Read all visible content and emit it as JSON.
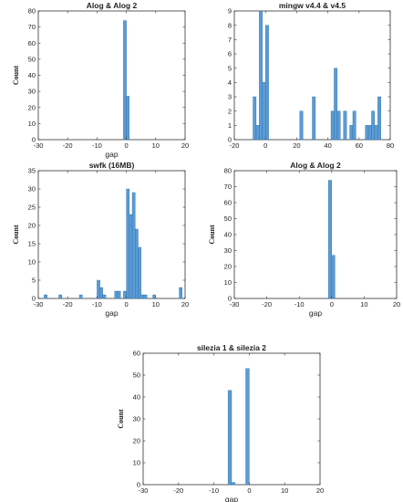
{
  "chart_data": [
    {
      "type": "bar",
      "title": "Alog & Alog 2",
      "xlabel": "gap",
      "ylabel": "Count",
      "xlim": [
        -30,
        20
      ],
      "ylim": [
        0,
        80
      ],
      "xticks": [
        -30,
        -20,
        -10,
        0,
        10,
        20
      ],
      "yticks": [
        0,
        10,
        20,
        30,
        40,
        50,
        60,
        70,
        80
      ],
      "bins": [
        {
          "x0": -1,
          "x1": 0,
          "count": 74
        },
        {
          "x0": 0,
          "x1": 1,
          "count": 27
        }
      ]
    },
    {
      "type": "bar",
      "title": "mingw v4.4 & v4.5",
      "xlabel": "",
      "ylabel": "",
      "xlim": [
        -20,
        80
      ],
      "ylim": [
        0,
        9
      ],
      "xticks": [
        -20,
        0,
        20,
        40,
        60,
        80
      ],
      "yticks": [
        0,
        1,
        2,
        3,
        4,
        5,
        6,
        7,
        8,
        9
      ],
      "bins": [
        {
          "x0": -8,
          "x1": -6,
          "count": 3
        },
        {
          "x0": -6,
          "x1": -4,
          "count": 1
        },
        {
          "x0": -4,
          "x1": -2,
          "count": 9
        },
        {
          "x0": -2,
          "x1": 0,
          "count": 4
        },
        {
          "x0": 0,
          "x1": 2,
          "count": 8
        },
        {
          "x0": 22,
          "x1": 24,
          "count": 2
        },
        {
          "x0": 30,
          "x1": 32,
          "count": 3
        },
        {
          "x0": 42,
          "x1": 44,
          "count": 2
        },
        {
          "x0": 44,
          "x1": 46,
          "count": 5
        },
        {
          "x0": 46,
          "x1": 48,
          "count": 2
        },
        {
          "x0": 50,
          "x1": 52,
          "count": 2
        },
        {
          "x0": 54,
          "x1": 56,
          "count": 1
        },
        {
          "x0": 56,
          "x1": 58,
          "count": 2
        },
        {
          "x0": 64,
          "x1": 66,
          "count": 1
        },
        {
          "x0": 66,
          "x1": 68,
          "count": 1
        },
        {
          "x0": 68,
          "x1": 70,
          "count": 2
        },
        {
          "x0": 70,
          "x1": 72,
          "count": 1
        },
        {
          "x0": 72,
          "x1": 74,
          "count": 3
        }
      ]
    },
    {
      "type": "bar",
      "title": "swfk (16MB)",
      "xlabel": "gap",
      "ylabel": "Count",
      "xlim": [
        -30,
        20
      ],
      "ylim": [
        0,
        35
      ],
      "xticks": [
        -30,
        -20,
        -10,
        0,
        10,
        20
      ],
      "yticks": [
        0,
        5,
        10,
        15,
        20,
        25,
        30,
        35
      ],
      "bins": [
        {
          "x0": -28,
          "x1": -27,
          "count": 1
        },
        {
          "x0": -23,
          "x1": -22,
          "count": 1
        },
        {
          "x0": -16,
          "x1": -15,
          "count": 1
        },
        {
          "x0": -10,
          "x1": -9,
          "count": 5
        },
        {
          "x0": -9,
          "x1": -8,
          "count": 3
        },
        {
          "x0": -8,
          "x1": -7,
          "count": 1
        },
        {
          "x0": -4,
          "x1": -3,
          "count": 2
        },
        {
          "x0": -3,
          "x1": -2,
          "count": 2
        },
        {
          "x0": -1,
          "x1": 0,
          "count": 2
        },
        {
          "x0": 0,
          "x1": 1,
          "count": 30
        },
        {
          "x0": 1,
          "x1": 2,
          "count": 23
        },
        {
          "x0": 2,
          "x1": 3,
          "count": 29
        },
        {
          "x0": 3,
          "x1": 4,
          "count": 19
        },
        {
          "x0": 4,
          "x1": 5,
          "count": 14
        },
        {
          "x0": 5,
          "x1": 6,
          "count": 1
        },
        {
          "x0": 6,
          "x1": 7,
          "count": 1
        },
        {
          "x0": 9,
          "x1": 10,
          "count": 1
        },
        {
          "x0": 18,
          "x1": 19,
          "count": 3
        }
      ]
    },
    {
      "type": "bar",
      "title": "Alog & Alog 2",
      "xlabel": "gap",
      "ylabel": "Count",
      "xlim": [
        -30,
        20
      ],
      "ylim": [
        0,
        80
      ],
      "xticks": [
        -30,
        -20,
        -10,
        0,
        10,
        20
      ],
      "yticks": [
        0,
        10,
        20,
        30,
        40,
        50,
        60,
        70,
        80
      ],
      "bins": [
        {
          "x0": -1,
          "x1": 0,
          "count": 74
        },
        {
          "x0": 0,
          "x1": 1,
          "count": 27
        }
      ]
    },
    {
      "type": "bar",
      "title": "silezia 1 & silezia 2",
      "xlabel": "gap",
      "ylabel": "Count",
      "xlim": [
        -30,
        20
      ],
      "ylim": [
        0,
        60
      ],
      "xticks": [
        -30,
        -20,
        -10,
        0,
        10,
        20
      ],
      "yticks": [
        0,
        10,
        20,
        30,
        40,
        50,
        60
      ],
      "bins": [
        {
          "x0": -6,
          "x1": -5,
          "count": 43
        },
        {
          "x0": -5,
          "x1": -4,
          "count": 1
        },
        {
          "x0": -1,
          "x1": 0,
          "count": 53
        }
      ]
    }
  ],
  "style": {
    "bar_fill": "#5b9bd5",
    "bar_edge": "#2f6e9e",
    "axis_color": "#333333"
  }
}
